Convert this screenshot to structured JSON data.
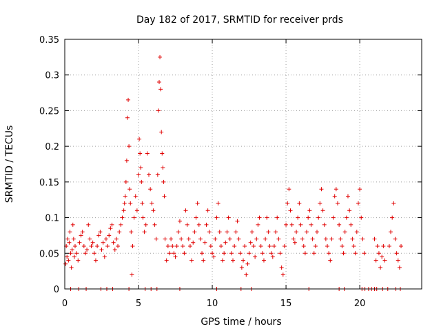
{
  "chart_data": {
    "type": "scatter",
    "title": "Day 182 of 2017, SRMTID for receiver prds",
    "xlabel": "GPS time / hours",
    "ylabel": "SRMTID / TECUs",
    "xlim": [
      0,
      24.2
    ],
    "ylim": [
      0,
      0.35
    ],
    "xticks": [
      0,
      5,
      10,
      15,
      20
    ],
    "xtick_labels": [
      "0",
      "5",
      "10",
      "15",
      "20"
    ],
    "yticks": [
      0,
      0.05,
      0.1,
      0.15,
      0.2,
      0.25,
      0.3,
      0.35
    ],
    "ytick_labels": [
      "0",
      "0.05",
      "0.1",
      "0.15",
      "0.2",
      "0.25",
      "0.3",
      "0.35"
    ],
    "grid": true,
    "marker": "plus",
    "color": "#e00000",
    "series": [
      {
        "name": "SRMTID",
        "x": [
          0.05,
          0.1,
          0.15,
          0.2,
          0.25,
          0.3,
          0.35,
          0.4,
          0.45,
          0.5,
          0.55,
          0.6,
          0.65,
          0.7,
          0.8,
          0.9,
          1.0,
          1.1,
          1.2,
          1.3,
          1.4,
          1.5,
          1.6,
          1.7,
          1.8,
          1.9,
          2.0,
          2.1,
          2.2,
          2.3,
          2.4,
          2.5,
          2.6,
          2.7,
          2.8,
          2.9,
          3.0,
          3.1,
          3.2,
          3.3,
          3.4,
          3.5,
          3.6,
          3.7,
          3.8,
          3.9,
          4.0,
          4.05,
          4.1,
          4.15,
          4.2,
          4.25,
          4.3,
          4.35,
          4.4,
          4.45,
          4.5,
          4.55,
          4.6,
          4.7,
          4.8,
          4.9,
          5.0,
          5.05,
          5.1,
          5.15,
          5.2,
          5.25,
          5.3,
          5.4,
          5.5,
          5.6,
          5.7,
          5.8,
          5.9,
          6.0,
          6.1,
          6.2,
          6.3,
          6.35,
          6.4,
          6.45,
          6.5,
          6.55,
          6.6,
          6.65,
          6.7,
          6.75,
          6.8,
          6.9,
          7.0,
          7.1,
          7.2,
          7.3,
          7.4,
          7.5,
          7.6,
          7.7,
          7.8,
          7.9,
          8.0,
          8.1,
          8.2,
          8.3,
          8.4,
          8.5,
          8.6,
          8.7,
          8.8,
          8.9,
          9.0,
          9.1,
          9.2,
          9.3,
          9.4,
          9.5,
          9.6,
          9.7,
          9.8,
          9.9,
          10.0,
          10.1,
          10.2,
          10.3,
          10.4,
          10.5,
          10.6,
          10.7,
          10.8,
          10.9,
          11.0,
          11.1,
          11.2,
          11.3,
          11.4,
          11.5,
          11.6,
          11.7,
          11.8,
          11.9,
          12.0,
          12.1,
          12.2,
          12.3,
          12.4,
          12.5,
          12.6,
          12.7,
          12.8,
          12.9,
          13.0,
          13.1,
          13.2,
          13.3,
          13.4,
          13.5,
          13.6,
          13.7,
          13.8,
          13.9,
          14.0,
          14.1,
          14.2,
          14.3,
          14.4,
          14.5,
          14.6,
          14.7,
          14.8,
          14.9,
          15.0,
          15.1,
          15.2,
          15.3,
          15.4,
          15.5,
          15.6,
          15.7,
          15.8,
          15.9,
          16.0,
          16.1,
          16.2,
          16.3,
          16.4,
          16.5,
          16.6,
          16.7,
          16.8,
          16.9,
          17.0,
          17.1,
          17.2,
          17.3,
          17.4,
          17.5,
          17.6,
          17.7,
          17.8,
          17.9,
          18.0,
          18.1,
          18.2,
          18.3,
          18.4,
          18.5,
          18.6,
          18.7,
          18.8,
          18.9,
          19.0,
          19.1,
          19.2,
          19.3,
          19.4,
          19.5,
          19.6,
          19.7,
          19.8,
          19.9,
          20.0,
          20.1,
          20.2,
          20.3,
          21.0,
          21.1,
          21.2,
          21.3,
          21.4,
          21.5,
          21.6,
          21.7,
          22.0,
          22.1,
          22.2,
          22.3,
          22.4,
          22.5,
          22.6,
          22.7,
          22.8
        ],
        "y": [
          0.035,
          0.06,
          0.045,
          0.07,
          0.04,
          0.065,
          0.08,
          0.05,
          0.03,
          0.055,
          0.09,
          0.07,
          0.045,
          0.06,
          0.05,
          0.04,
          0.065,
          0.075,
          0.08,
          0.06,
          0.05,
          0.055,
          0.09,
          0.07,
          0.06,
          0.065,
          0.05,
          0.04,
          0.06,
          0.075,
          0.08,
          0.055,
          0.065,
          0.045,
          0.07,
          0.06,
          0.075,
          0.085,
          0.09,
          0.065,
          0.055,
          0.07,
          0.06,
          0.08,
          0.09,
          0.1,
          0.11,
          0.12,
          0.13,
          0.15,
          0.18,
          0.24,
          0.265,
          0.2,
          0.14,
          0.12,
          0.08,
          0.02,
          0.06,
          0.1,
          0.13,
          0.11,
          0.16,
          0.21,
          0.19,
          0.17,
          0.15,
          0.12,
          0.1,
          0.08,
          0.09,
          0.19,
          0.16,
          0.14,
          0.12,
          0.11,
          0.09,
          0.07,
          0.16,
          0.25,
          0.29,
          0.325,
          0.28,
          0.22,
          0.19,
          0.17,
          0.15,
          0.13,
          0.07,
          0.04,
          0.06,
          0.05,
          0.07,
          0.06,
          0.05,
          0.045,
          0.06,
          0.08,
          0.095,
          0.07,
          0.06,
          0.05,
          0.11,
          0.09,
          0.07,
          0.06,
          0.04,
          0.065,
          0.08,
          0.1,
          0.12,
          0.09,
          0.07,
          0.05,
          0.04,
          0.065,
          0.09,
          0.11,
          0.08,
          0.06,
          0.05,
          0.045,
          0.07,
          0.1,
          0.12,
          0.08,
          0.06,
          0.04,
          0.05,
          0.065,
          0.08,
          0.1,
          0.07,
          0.05,
          0.04,
          0.06,
          0.08,
          0.095,
          0.07,
          0.05,
          0.03,
          0.04,
          0.06,
          0.02,
          0.035,
          0.05,
          0.065,
          0.08,
          0.06,
          0.045,
          0.07,
          0.09,
          0.1,
          0.06,
          0.05,
          0.04,
          0.07,
          0.1,
          0.08,
          0.06,
          0.05,
          0.045,
          0.06,
          0.08,
          0.1,
          0.07,
          0.05,
          0.03,
          0.02,
          0.06,
          0.09,
          0.12,
          0.14,
          0.11,
          0.09,
          0.07,
          0.065,
          0.08,
          0.1,
          0.12,
          0.09,
          0.07,
          0.06,
          0.05,
          0.08,
          0.1,
          0.11,
          0.09,
          0.07,
          0.05,
          0.06,
          0.08,
          0.1,
          0.12,
          0.14,
          0.11,
          0.09,
          0.07,
          0.06,
          0.05,
          0.04,
          0.07,
          0.1,
          0.13,
          0.14,
          0.12,
          0.09,
          0.07,
          0.06,
          0.05,
          0.08,
          0.1,
          0.13,
          0.11,
          0.09,
          0.07,
          0.06,
          0.05,
          0.08,
          0.12,
          0.14,
          0.1,
          0.07,
          0.05,
          0.07,
          0.04,
          0.06,
          0.05,
          0.03,
          0.045,
          0.06,
          0.04,
          0.06,
          0.08,
          0.1,
          0.12,
          0.07,
          0.05,
          0.04,
          0.03,
          0.06
        ],
        "zero_x": [
          0.4,
          0.95,
          1.45,
          2.45,
          2.85,
          3.25,
          4.35,
          5.45,
          5.85,
          6.25,
          7.8,
          10.3,
          11.95,
          12.65,
          16.55,
          18.6,
          18.95,
          20.15,
          20.35,
          20.6,
          20.8,
          21.0,
          21.15,
          21.55,
          21.9,
          22.45,
          22.75
        ]
      }
    ]
  }
}
